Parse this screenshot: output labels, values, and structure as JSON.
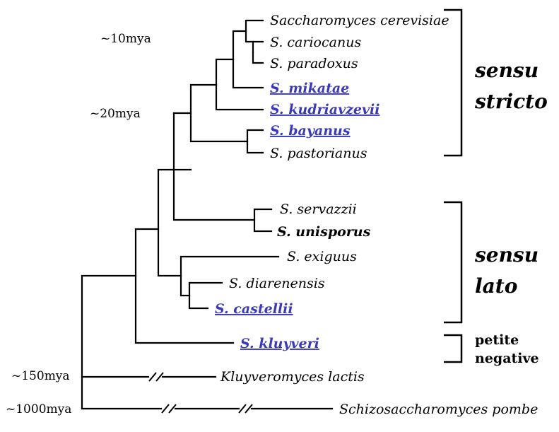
{
  "taxa": {
    "cerevisiae": "Saccharomyces cerevisiae",
    "cariocanus": "S. cariocanus",
    "paradoxus": "S. paradoxus",
    "mikatae": "S. mikatae",
    "kudriavzevii": "S. kudriavzevii",
    "bayanus": "S. bayanus",
    "pastorianus": "S. pastorianus",
    "servazzii": "S. servazzii",
    "unisporus": "S. unisporus",
    "exiguus": "S. exiguus",
    "diarenensis": "S. diarenensis",
    "castellii": "S. castellii",
    "kluyveri": "S. kluyveri",
    "lactis": "Kluyveromyces lactis",
    "pombe": "Schizosaccharomyces pombe"
  },
  "times": {
    "t10": "~10mya",
    "t20": "~20mya",
    "t150": "~150mya",
    "t1000": "~1000mya"
  },
  "groups": {
    "stricto_line1": "sensu",
    "stricto_line2": "stricto",
    "lato_line1": "sensu",
    "lato_line2": "lato",
    "petite_line1": "petite",
    "petite_line2": "negative"
  },
  "colors": {
    "link": "#3a3ab8"
  }
}
